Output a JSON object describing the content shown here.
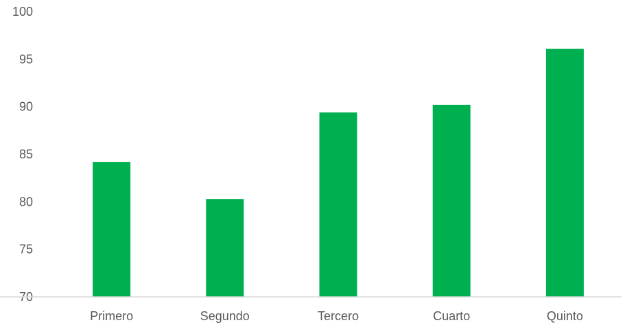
{
  "chart_data": {
    "type": "bar",
    "title": "",
    "xlabel": "",
    "ylabel": "",
    "categories": [
      "Primero",
      "Segundo",
      "Tercero",
      "Cuarto",
      "Quinto"
    ],
    "values": [
      84.2,
      80.3,
      89.4,
      90.2,
      96.1
    ],
    "ylim": [
      70,
      100
    ],
    "yticks": [
      "70",
      "75",
      "80",
      "85",
      "90",
      "95",
      "100"
    ],
    "grid": false,
    "legend": "none",
    "bar_color": "#00B050",
    "axis_color": "#D9D9D9"
  }
}
